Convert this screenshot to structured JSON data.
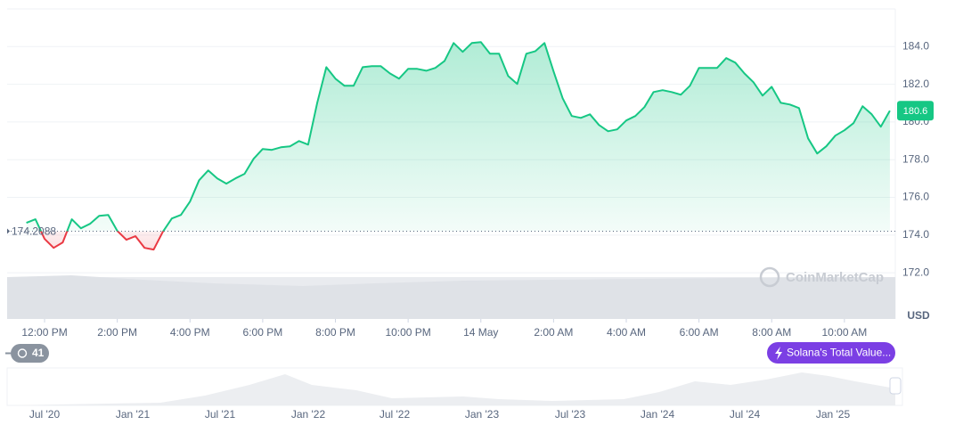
{
  "chart_data": {
    "type": "line",
    "x": [
      11.5,
      11.75,
      12,
      12.25,
      12.5,
      12.75,
      13,
      13.25,
      13.5,
      13.75,
      14,
      14.25,
      14.5,
      14.75,
      15,
      15.25,
      15.5,
      15.75,
      16,
      16.25,
      16.5,
      16.75,
      17,
      17.25,
      17.5,
      17.75,
      18,
      18.25,
      18.5,
      18.75,
      19,
      19.25,
      19.5,
      19.75,
      20,
      20.25,
      20.5,
      20.75,
      21,
      21.25,
      21.5,
      21.75,
      22,
      22.25,
      22.5,
      22.75,
      23,
      23.25,
      23.5,
      23.75,
      24,
      24.25,
      24.5,
      24.75,
      25,
      25.25,
      25.5,
      25.75,
      26,
      26.25,
      26.5,
      26.75,
      27,
      27.25,
      27.5,
      27.75,
      28,
      28.25,
      28.5,
      28.75,
      29,
      29.25,
      29.5,
      29.75,
      30,
      30.25,
      30.5,
      30.75,
      31,
      31.25,
      31.5,
      31.75,
      32,
      32.25,
      32.5,
      32.75,
      33,
      33.25,
      33.5,
      33.75,
      34,
      34.25,
      34.5,
      34.75,
      35,
      35.25
    ],
    "values": [
      174.65,
      174.84,
      173.8,
      173.32,
      173.61,
      174.84,
      174.36,
      174.6,
      175.02,
      175.07,
      174.22,
      173.75,
      173.94,
      173.32,
      173.23,
      174.17,
      174.88,
      175.07,
      175.78,
      176.91,
      177.43,
      177.01,
      176.73,
      177.01,
      177.25,
      178.05,
      178.57,
      178.52,
      178.66,
      178.71,
      178.99,
      178.8,
      181.02,
      182.91,
      182.3,
      181.92,
      181.92,
      182.91,
      182.96,
      182.96,
      182.58,
      182.3,
      182.82,
      182.82,
      182.72,
      182.87,
      183.24,
      184.19,
      183.72,
      184.19,
      184.24,
      183.62,
      183.62,
      182.44,
      182.02,
      183.62,
      183.76,
      184.19,
      182.68,
      181.26,
      180.32,
      180.22,
      180.41,
      179.84,
      179.51,
      179.61,
      180.08,
      180.32,
      180.79,
      181.59,
      181.69,
      181.59,
      181.45,
      181.92,
      182.87,
      182.87,
      182.87,
      183.39,
      183.15,
      182.58,
      182.11,
      181.4,
      181.87,
      181.02,
      180.93,
      180.74,
      179.13,
      178.33,
      178.71,
      179.28,
      179.56,
      179.94,
      180.84,
      180.41,
      179.75,
      180.6
    ],
    "up_color": "#16c784",
    "down_color": "#ea3943",
    "baseline": 174.2088,
    "current_price": 180.6,
    "xlim": [
      10.97,
      35.4
    ],
    "xticks": [
      {
        "value": 12,
        "label": "12:00 PM"
      },
      {
        "value": 14,
        "label": "2:00 PM"
      },
      {
        "value": 16,
        "label": "4:00 PM"
      },
      {
        "value": 18,
        "label": "6:00 PM"
      },
      {
        "value": 20,
        "label": "8:00 PM"
      },
      {
        "value": 22,
        "label": "10:00 PM"
      },
      {
        "value": 24,
        "label": "14 May"
      },
      {
        "value": 26,
        "label": "2:00 AM"
      },
      {
        "value": 28,
        "label": "4:00 AM"
      },
      {
        "value": 30,
        "label": "6:00 AM"
      },
      {
        "value": 32,
        "label": "8:00 AM"
      },
      {
        "value": 34,
        "label": "10:00 AM"
      }
    ],
    "ylim": [
      169.55,
      186
    ],
    "yticks": [
      {
        "value": 172,
        "label": "172.0"
      },
      {
        "value": 174,
        "label": "174.0"
      },
      {
        "value": 176,
        "label": "176.0"
      },
      {
        "value": 178,
        "label": "178.0"
      },
      {
        "value": 180,
        "label": "180.0"
      },
      {
        "value": 182,
        "label": "182.0"
      },
      {
        "value": 184,
        "label": "184.0"
      }
    ],
    "grid": true,
    "currency": "USD",
    "watermark": "CoinMarketCap"
  },
  "controls": {
    "events_count": 41,
    "promo": "Solana's Total Value..."
  },
  "navigator": {
    "labels": [
      "Jul '20",
      "Jan '21",
      "Jul '21",
      "Jan '22",
      "Jul '22",
      "Jan '23",
      "Jul '23",
      "Jan '24",
      "Jul '24",
      "Jan '25"
    ]
  }
}
